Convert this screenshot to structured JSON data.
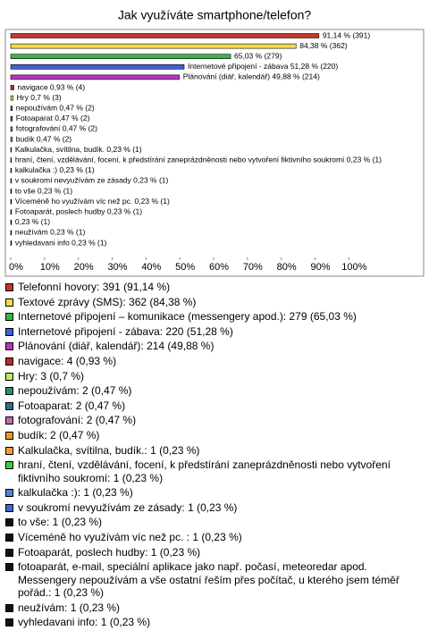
{
  "chart_data": {
    "type": "hbar",
    "title": "Jak využíváte smartphone/telefon?",
    "categories": [
      "Telefonní hovory: 391 (91,14 %)",
      "Textové zprávy (SMS): 362 (84,38 %)",
      "Internetové připojení – komunikace (messengery apod.): 279 (65,03 %)",
      "Internetové připojení - zábava: 220 (51,28 %)",
      "Plánování (diář, kalendář): 214 (49,88 %)",
      "navigace: 4 (0,93 %)",
      "Hry: 3 (0,7 %)",
      "nepoužívám: 2 (0,47 %)",
      "Fotoaparat: 2 (0,47 %)",
      "fotografování: 2 (0,47 %)",
      "budík: 2 (0,47 %)",
      "Kalkulačka, svítilna, budík.: 1 (0,23 %)",
      "hraní, čtení, vzdělávání, focení, k předstírání zaneprázdněnosti nebo vytvoření fiktivního soukromí: 1 (0,23 %)",
      "kalkulačka :): 1 (0,23 %)",
      "v soukromí nevyužívám ze zásady: 1 (0,23 %)",
      "to vše: 1 (0,23 %)",
      "Víceméně ho využívám víc než pc. : 1 (0,23 %)",
      "Fotoaparát, poslech hudby: 1 (0,23 %)",
      "fotoaparát, e-mail, speciální aplikace jako např. počasí, meteoredar apod. Messengery nepoužívám a vše ostatní řeším přes počítač, u kterého jsem téměř pořád.: 1 (0,23 %)",
      "neužívám: 1 (0,23 %)",
      "vyhledavani info: 1 (0,23 %)"
    ],
    "values": [
      91.14,
      84.38,
      65.03,
      51.28,
      49.88,
      0.93,
      0.7,
      0.47,
      0.47,
      0.47,
      0.47,
      0.23,
      0.23,
      0.23,
      0.23,
      0.23,
      0.23,
      0.23,
      0.23,
      0.23,
      0.23
    ],
    "value_labels": [
      "91,14 % (391)",
      "84,38 % (362)",
      "65,03 % (279)",
      "Internetové připojení - zábava 51,28 % (220)",
      "Plánování (diář, kalendář) 49,88 % (214)",
      "navigace 0,93 % (4)",
      "Hry 0,7 % (3)",
      "nepoužívám 0,47 % (2)",
      "Fotoaparat 0,47 % (2)",
      "fotografování 0,47 % (2)",
      "budík 0,47 % (2)",
      "Kalkulačka, svítilna, budík. 0,23 % (1)",
      "hraní, čtení, vzdělávání, focení, k předstírání zaneprázdněnosti nebo vytvoření fiktivního soukromí 0,23 % (1)",
      "kalkulačka :) 0,23 % (1)",
      "v soukromí nevyužívám ze zásady 0,23 % (1)",
      "to vše 0,23 % (1)",
      "Víceméně ho využívám víc než pc. 0,23 % (1)",
      "Fotoaparát, poslech hudby 0,23 % (1)",
      "0,23 % (1)",
      "neužívám 0,23 % (1)",
      "vyhledavani info 0,23 % (1)"
    ],
    "colors": [
      "#c0392b",
      "#f2dc4a",
      "#3cb34a",
      "#4060d8",
      "#b834c2",
      "#b03028",
      "#b8e86c",
      "#2e8b75",
      "#2b6f8f",
      "#c06ab0",
      "#e8962e",
      "#e8a03a",
      "#3ccc3c",
      "#5b7fd6",
      "#4466cc",
      "#111111",
      "#111111",
      "#111111",
      "#111111",
      "#111111",
      "#111111"
    ],
    "xlim": [
      0,
      120
    ],
    "xticks": [
      {
        "value": 0,
        "label": "0%"
      },
      {
        "value": 10,
        "label": "10%"
      },
      {
        "value": 20,
        "label": "20%"
      },
      {
        "value": 30,
        "label": "30%"
      },
      {
        "value": 40,
        "label": "40%"
      },
      {
        "value": 50,
        "label": "50%"
      },
      {
        "value": 60,
        "label": "60%"
      },
      {
        "value": 70,
        "label": "70%"
      },
      {
        "value": 80,
        "label": "80%"
      },
      {
        "value": 90,
        "label": "90%"
      },
      {
        "value": 100,
        "label": "100%"
      }
    ]
  }
}
